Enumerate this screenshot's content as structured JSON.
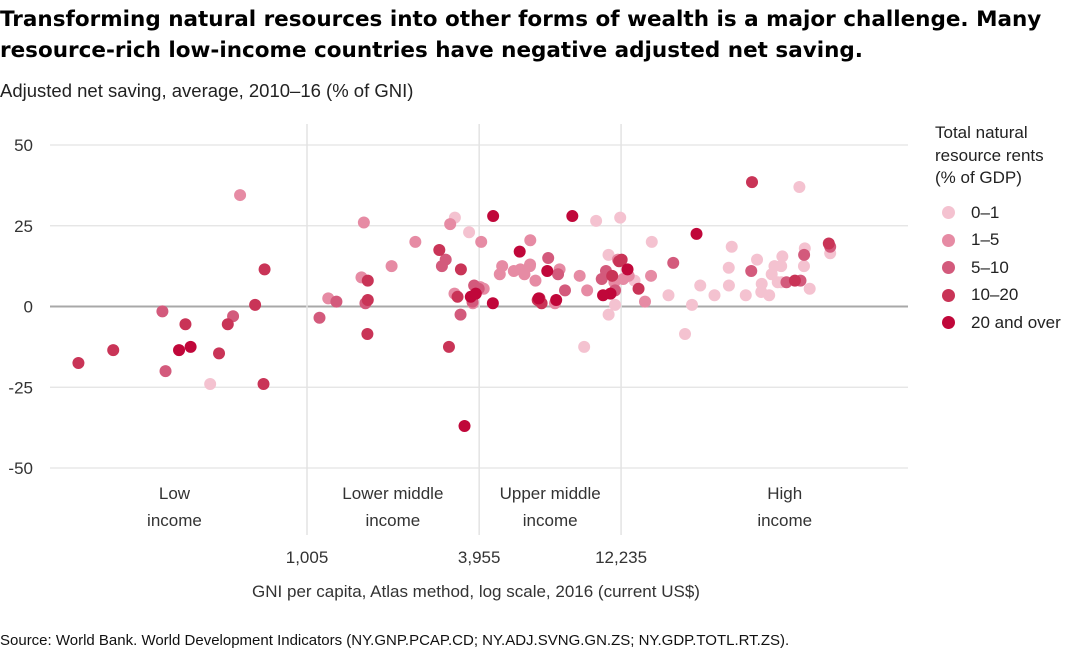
{
  "title_line1": "Transforming natural resources into other forms of wealth is a major challenge. Many",
  "title_line2": "resource-rich low-income countries have negative adjusted net saving.",
  "subtitle": "Adjusted net saving, average, 2010–16 (% of GNI)",
  "source": "Source: World Bank. World Development Indicators (NY.GNP.PCAP.CD; NY.ADJ.SVNG.GN.ZS; NY.GDP.TOTL.RT.ZS).",
  "chart_data": {
    "type": "scatter",
    "xlabel": "GNI per capita, Atlas method, log scale, 2016 (current US$)",
    "ylabel": "",
    "x_scale": "log",
    "xlim": [
      130,
      120000
    ],
    "ylim": [
      -50,
      50
    ],
    "y_ticks": [
      {
        "value": 50,
        "label": "50"
      },
      {
        "value": 25,
        "label": "25"
      },
      {
        "value": 0,
        "label": "0"
      },
      {
        "value": -25,
        "label": "-25"
      },
      {
        "value": -50,
        "label": "-50"
      }
    ],
    "x_ticks": [
      {
        "value": 1005,
        "label": "1,005"
      },
      {
        "value": 3955,
        "label": "3,955"
      },
      {
        "value": 12235,
        "label": "12,235"
      }
    ],
    "income_groups": [
      {
        "line1": "Low",
        "line2": "income",
        "center": 350
      },
      {
        "line1": "Lower middle",
        "line2": "income",
        "center": 1990
      },
      {
        "line1": "Upper middle",
        "line2": "income",
        "center": 6960
      },
      {
        "line1": "High",
        "line2": "income",
        "center": 45000
      }
    ],
    "grid": true,
    "zero_line": true,
    "legend": {
      "title_lines": [
        "Total natural",
        "resource rents",
        "(% of GDP)"
      ],
      "position": "right",
      "entries": [
        {
          "label": "0–1",
          "color": "#f4c2d0"
        },
        {
          "label": "1–5",
          "color": "#e68ba4"
        },
        {
          "label": "5–10",
          "color": "#d35a7c"
        },
        {
          "label": "10–20",
          "color": "#c93457"
        },
        {
          "label": "20 and over",
          "color": "#c0073a"
        }
      ]
    },
    "series": [
      {
        "category": 0,
        "points": [
          [
            465,
            -24
          ],
          [
            11660,
            0.5
          ],
          [
            9120,
            -12.5
          ],
          [
            11080,
            -2.5
          ],
          [
            13620,
            8
          ],
          [
            12150,
            27.5
          ],
          [
            15620,
            20
          ],
          [
            17840,
            3.5
          ],
          [
            20350,
            -8.5
          ],
          [
            21510,
            0.5
          ],
          [
            11070,
            16
          ],
          [
            12830,
            11.5
          ],
          [
            22970,
            6.5
          ],
          [
            25730,
            3.5
          ],
          [
            28820,
            12
          ],
          [
            29510,
            18.5
          ],
          [
            28860,
            6.5
          ],
          [
            33000,
            3.5
          ],
          [
            36100,
            14.5
          ],
          [
            37340,
            4.5
          ],
          [
            37460,
            7
          ],
          [
            39760,
            3.5
          ],
          [
            40560,
            10
          ],
          [
            41470,
            12.5
          ],
          [
            42560,
            7.5
          ],
          [
            43750,
            7.5
          ],
          [
            43740,
            12.5
          ],
          [
            44150,
            15.5
          ],
          [
            50560,
            37
          ],
          [
            52440,
            12.5
          ],
          [
            52790,
            18
          ],
          [
            54880,
            5.5
          ],
          [
            64600,
            16.5
          ],
          [
            3650,
            23
          ],
          [
            3260,
            27.5
          ],
          [
            10030,
            26.5
          ],
          [
            11690,
            5
          ]
        ]
      },
      {
        "category": 1,
        "points": [
          [
            590,
            34.5
          ],
          [
            1580,
            26
          ],
          [
            1970,
            12.5
          ],
          [
            2380,
            20
          ],
          [
            3140,
            25.5
          ],
          [
            4020,
            20
          ],
          [
            4660,
            10
          ],
          [
            5490,
            11.5
          ],
          [
            5670,
            10
          ],
          [
            5930,
            13
          ],
          [
            5940,
            20.5
          ],
          [
            5920,
            12.5
          ],
          [
            6190,
            8
          ],
          [
            8800,
            9.5
          ],
          [
            9340,
            5
          ],
          [
            11930,
            14.5
          ],
          [
            11600,
            7.5
          ],
          [
            12440,
            8.5
          ],
          [
            13000,
            9.5
          ],
          [
            14800,
            1.5
          ],
          [
            15530,
            9.5
          ],
          [
            1550,
            9
          ],
          [
            3250,
            4
          ],
          [
            3760,
            1
          ],
          [
            4100,
            5.5
          ],
          [
            4750,
            12.5
          ],
          [
            3990,
            6
          ],
          [
            5210,
            11
          ],
          [
            7230,
            1
          ],
          [
            7500,
            11.5
          ],
          [
            1190,
            2.5
          ]
        ]
      },
      {
        "category": 2,
        "points": [
          [
            318,
            -1.5
          ],
          [
            326,
            -20
          ],
          [
            558,
            -3
          ],
          [
            1110,
            -3.5
          ],
          [
            2940,
            12.5
          ],
          [
            3030,
            14.5
          ],
          [
            3410,
            -2.5
          ],
          [
            3800,
            6.5
          ],
          [
            3940,
            5.5
          ],
          [
            3750,
            1.5
          ],
          [
            6850,
            15
          ],
          [
            7410,
            10
          ],
          [
            7830,
            5
          ],
          [
            10490,
            8.5
          ],
          [
            10850,
            11
          ],
          [
            11660,
            5
          ],
          [
            18530,
            13.5
          ],
          [
            34470,
            11
          ],
          [
            45620,
            7.5
          ],
          [
            51000,
            8
          ],
          [
            52500,
            16
          ],
          [
            64600,
            18.5
          ],
          [
            1270,
            1.5
          ],
          [
            1600,
            1
          ]
        ]
      },
      {
        "category": 3,
        "points": [
          [
            163,
            -17.5
          ],
          [
            215,
            -13.5
          ],
          [
            382,
            -5.5
          ],
          [
            499,
            -14.5
          ],
          [
            535,
            -5.5
          ],
          [
            665,
            0.5
          ],
          [
            717,
            11.5
          ],
          [
            711,
            -24
          ],
          [
            1630,
            8
          ],
          [
            1630,
            2
          ],
          [
            1625,
            -8.5
          ],
          [
            2880,
            17.5
          ],
          [
            3110,
            -12.5
          ],
          [
            3420,
            11.5
          ],
          [
            3330,
            3
          ],
          [
            6390,
            2.5
          ],
          [
            6500,
            1
          ],
          [
            11400,
            9.5
          ],
          [
            12040,
            14
          ],
          [
            12290,
            14.5
          ],
          [
            14060,
            5.5
          ],
          [
            34680,
            38.5
          ],
          [
            48800,
            8
          ],
          [
            63900,
            19.5
          ],
          [
            6300,
            2
          ]
        ]
      },
      {
        "category": 4,
        "points": [
          [
            363,
            -13.5
          ],
          [
            398,
            -12.5
          ],
          [
            3700,
            3
          ],
          [
            3850,
            4
          ],
          [
            4420,
            28
          ],
          [
            4410,
            1
          ],
          [
            5460,
            17
          ],
          [
            6800,
            11
          ],
          [
            7300,
            2
          ],
          [
            11250,
            4
          ],
          [
            12880,
            11.5
          ],
          [
            6350,
            2.5
          ],
          [
            22300,
            22.5
          ],
          [
            8300,
            28
          ],
          [
            3520,
            -37
          ],
          [
            10600,
            3.5
          ]
        ]
      }
    ]
  }
}
